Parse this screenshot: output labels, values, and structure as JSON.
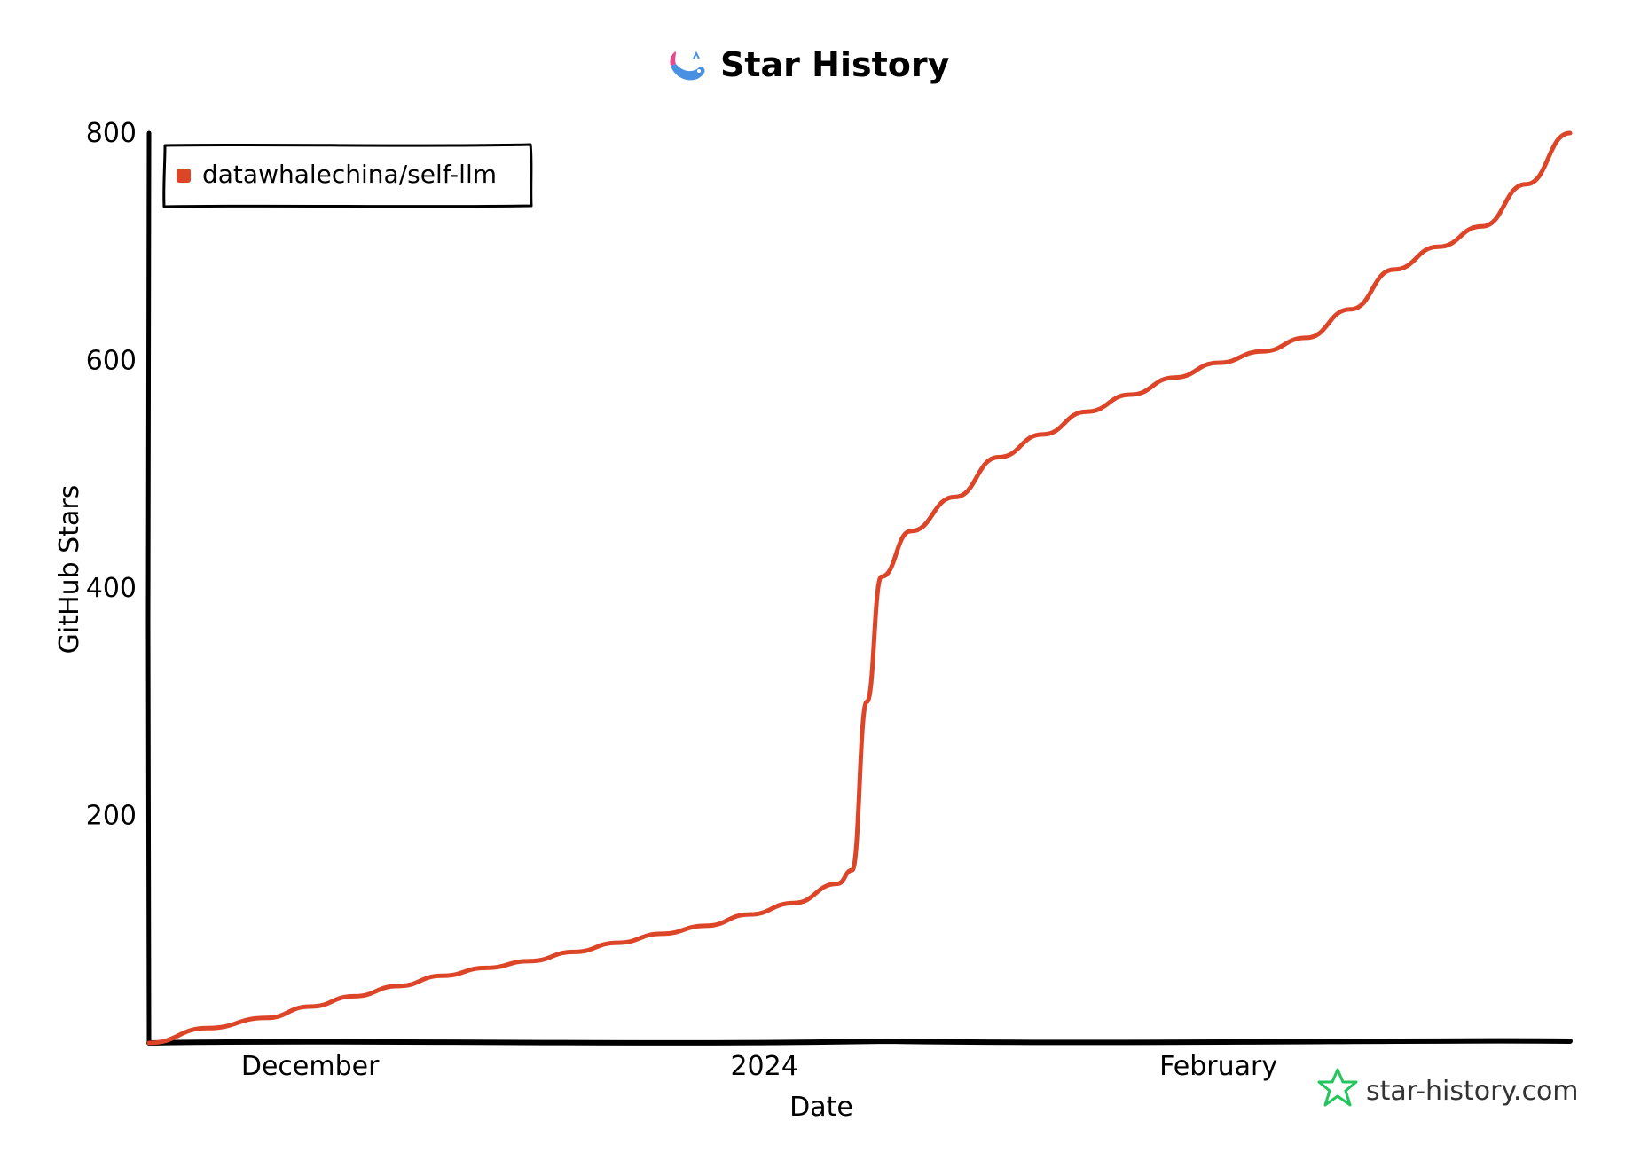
{
  "chart_data": {
    "type": "line",
    "title": "Star History",
    "xlabel": "Date",
    "ylabel": "GitHub Stars",
    "x_ticks": [
      {
        "label": "December",
        "date": "2023-12-01"
      },
      {
        "label": "2024",
        "date": "2024-01-01"
      },
      {
        "label": "February",
        "date": "2024-02-01"
      }
    ],
    "y_ticks": [
      200,
      400,
      600,
      800
    ],
    "xlim": [
      "2023-11-20",
      "2024-02-25"
    ],
    "ylim": [
      0,
      800
    ],
    "grid": false,
    "legend_position": "top-left",
    "series": [
      {
        "name": "datawhalechina/self-llm",
        "color": "#dd4528",
        "points": [
          [
            "2023-11-20",
            0
          ],
          [
            "2023-11-24",
            13
          ],
          [
            "2023-11-28",
            22
          ],
          [
            "2023-12-01",
            32
          ],
          [
            "2023-12-04",
            41
          ],
          [
            "2023-12-07",
            50
          ],
          [
            "2023-12-10",
            59
          ],
          [
            "2023-12-13",
            66
          ],
          [
            "2023-12-16",
            72
          ],
          [
            "2023-12-19",
            80
          ],
          [
            "2023-12-22",
            88
          ],
          [
            "2023-12-25",
            96
          ],
          [
            "2023-12-28",
            103
          ],
          [
            "2023-12-31",
            113
          ],
          [
            "2024-01-03",
            123
          ],
          [
            "2024-01-06",
            140
          ],
          [
            "2024-01-07",
            152
          ],
          [
            "2024-01-08",
            300
          ],
          [
            "2024-01-09",
            410
          ],
          [
            "2024-01-11",
            450
          ],
          [
            "2024-01-14",
            480
          ],
          [
            "2024-01-17",
            515
          ],
          [
            "2024-01-20",
            535
          ],
          [
            "2024-01-23",
            555
          ],
          [
            "2024-01-26",
            570
          ],
          [
            "2024-01-29",
            585
          ],
          [
            "2024-02-01",
            598
          ],
          [
            "2024-02-04",
            608
          ],
          [
            "2024-02-07",
            620
          ],
          [
            "2024-02-10",
            645
          ],
          [
            "2024-02-13",
            680
          ],
          [
            "2024-02-16",
            700
          ],
          [
            "2024-02-19",
            718
          ],
          [
            "2024-02-22",
            755
          ],
          [
            "2024-02-25",
            800
          ]
        ]
      }
    ]
  },
  "credit": "star-history.com",
  "colors": {
    "series": "#dd4528",
    "axis": "#000000",
    "credit_icon": "#22c55e",
    "logo_body": "#4a90e2",
    "logo_tail": "#e44b8d"
  },
  "icons": {
    "title_logo": "whale-logo-icon",
    "credit_logo": "star-history-icon"
  }
}
